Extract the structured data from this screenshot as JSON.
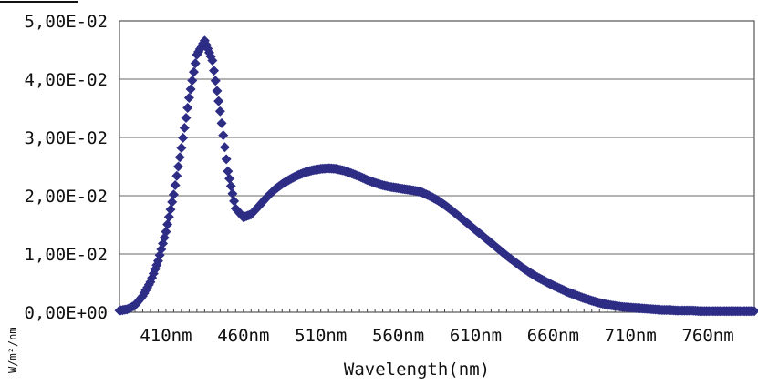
{
  "chart_data": {
    "type": "scatter",
    "xlabel": "Wavelength(nm)",
    "ylabel": "W/m²/nm",
    "x_tick_labels": [
      "410nm",
      "460nm",
      "510nm",
      "560nm",
      "610nm",
      "660nm",
      "710nm",
      "760nm"
    ],
    "y_tick_labels": [
      "0,00E+00",
      "1,00E-02",
      "2,00E-02",
      "3,00E-02",
      "4,00E-02",
      "5,00E-02"
    ],
    "xlim": [
      380,
      790
    ],
    "ylim": [
      0,
      0.05
    ],
    "grid": true,
    "marker_color": "#2e2d85",
    "series": [
      {
        "x": [
          380,
          385,
          390,
          395,
          400,
          405,
          410,
          415,
          420,
          425,
          430,
          435,
          440,
          445,
          450,
          455,
          460,
          465,
          470,
          475,
          480,
          485,
          490,
          495,
          500,
          505,
          510,
          515,
          520,
          525,
          530,
          535,
          540,
          545,
          550,
          555,
          560,
          565,
          570,
          575,
          580,
          585,
          590,
          595,
          600,
          605,
          610,
          615,
          620,
          625,
          630,
          635,
          640,
          645,
          650,
          655,
          660,
          665,
          670,
          675,
          680,
          685,
          690,
          695,
          700,
          705,
          710,
          715,
          720,
          725,
          730,
          735,
          740,
          745,
          750,
          755,
          760,
          765,
          770,
          775,
          780,
          785,
          790
        ],
        "y": [
          0.0003,
          0.0005,
          0.0012,
          0.0028,
          0.0052,
          0.0088,
          0.0138,
          0.0202,
          0.0282,
          0.0368,
          0.0442,
          0.0466,
          0.0432,
          0.0345,
          0.0242,
          0.0178,
          0.0163,
          0.0168,
          0.0182,
          0.0197,
          0.021,
          0.022,
          0.0228,
          0.0235,
          0.024,
          0.0244,
          0.0246,
          0.0247,
          0.0246,
          0.0243,
          0.0238,
          0.0233,
          0.0227,
          0.0222,
          0.0218,
          0.0215,
          0.0213,
          0.0211,
          0.0209,
          0.0206,
          0.02,
          0.0193,
          0.0184,
          0.0174,
          0.0163,
          0.0152,
          0.0141,
          0.013,
          0.0119,
          0.0108,
          0.0097,
          0.0087,
          0.0077,
          0.0068,
          0.006,
          0.0053,
          0.0046,
          0.004,
          0.0034,
          0.0029,
          0.0024,
          0.002,
          0.0016,
          0.0013,
          0.0011,
          0.0009,
          0.0008,
          0.0007,
          0.0006,
          0.0005,
          0.0004,
          0.0004,
          0.0003,
          0.0003,
          0.0003,
          0.0002,
          0.0002,
          0.0002,
          0.0002,
          0.0002,
          0.0002,
          0.0002,
          0.0002
        ]
      }
    ]
  }
}
